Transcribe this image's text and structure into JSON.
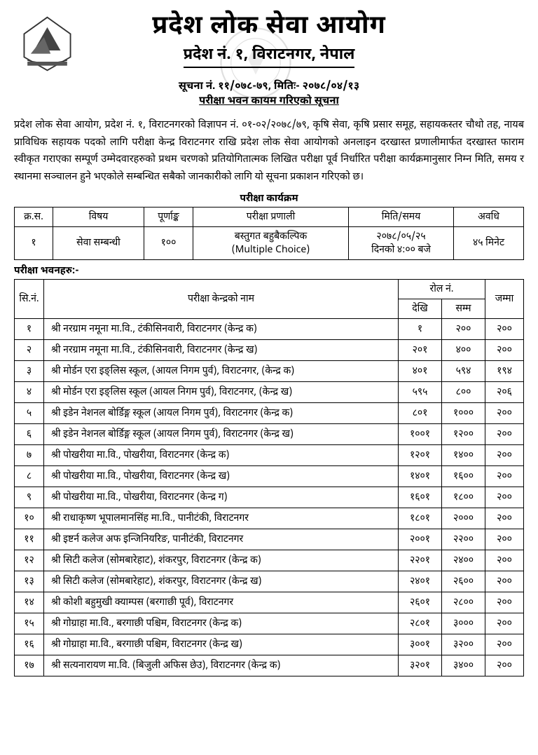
{
  "header": {
    "title": "प्रदेश लोक सेवा आयोग",
    "subtitle": "प्रदेश नं. १, विराटनगर, नेपाल"
  },
  "notice": {
    "number_line": "सूचना नं. ११/०७८-७९,  मितिः- २०७८/०४/१३",
    "title": "परीक्षा भवन कायम गरिएको सूचना",
    "body": "प्रदेश लोक सेवा आयोग, प्रदेश नं. १, विराटनगरको विज्ञापन नं. ०१-०२/२०७८/७९, कृषि सेवा, कृषि प्रसार समूह, सहायकस्तर चौथो तह, नायब प्राविधिक सहायक पदको लागि परीक्षा केन्द्र विराटनगर राखि प्रदेश लोक सेवा आयोगको अनलाइन दरखास्त प्रणालीमार्फत दरखास्त फाराम स्वीकृत गराएका सम्पूर्ण उम्मेदवारहरुको प्रथम चरणको प्रतियोगितात्मक लिखित परीक्षा पूर्व निर्धारित परीक्षा कार्यक्रमानुसार निम्न मिति, समय र स्थानमा सञ्चालन हुने भएकोले सम्बन्धित सबैको जानकारीको लागि यो सूचना प्रकाशन गरिएको छ।"
  },
  "schedule": {
    "caption": "परीक्षा कार्यक्रम",
    "headers": {
      "sn": "क्र.स.",
      "subject": "विषय",
      "marks": "पूर्णाङ्क",
      "method": "परीक्षा प्रणाली",
      "datetime": "मिति/समय",
      "duration": "अवधि"
    },
    "row": {
      "sn": "१",
      "subject": "सेवा सम्बन्धी",
      "marks": "१००",
      "method_line1": "बस्तुगत बहुबैकल्पिक",
      "method_line2": "(Multiple Choice)",
      "date": "२०७८/०५/२५",
      "time": "दिनको ४:०० बजे",
      "duration": "४५ मिनेट"
    }
  },
  "centers": {
    "section_label": "परीक्षा भवनहरु:-",
    "headers": {
      "sn": "सि.नं.",
      "name": "परीक्षा केन्द्रको नाम",
      "roll": "रोल नं.",
      "from": "देखि",
      "to": "सम्म",
      "total": "जम्मा"
    },
    "rows": [
      {
        "sn": "१",
        "name": "श्री नरग्राम नमूना मा.वि., टंकीसिनवारी, विराटनगर (केन्द्र क)",
        "from": "१",
        "to": "२००",
        "total": "२००"
      },
      {
        "sn": "२",
        "name": "श्री नरग्राम नमूना मा.वि., टंकीसिनवारी, विराटनगर (केन्द्र ख)",
        "from": "२०१",
        "to": "४००",
        "total": "२००"
      },
      {
        "sn": "३",
        "name": "श्री मोर्डन एरा इङ्लिस स्कूल, (आयल निगम पुर्व), विराटनगर, (केन्द्र क)",
        "from": "४०१",
        "to": "५९४",
        "total": "१९४"
      },
      {
        "sn": "४",
        "name": "श्री मोर्डन एरा इङ्लिस स्कूल (आयल निगम पुर्व), विराटनगर, (केन्द्र ख)",
        "from": "५९५",
        "to": "८००",
        "total": "२०६"
      },
      {
        "sn": "५",
        "name": "श्री इडेन नेशनल बोर्डिङ्ग स्कूल (आयल निगम पुर्व), विराटनगर (केन्द्र क)",
        "from": "८०१",
        "to": "१०००",
        "total": "२००"
      },
      {
        "sn": "६",
        "name": "श्री इडेन नेशनल बोर्डिङ्ग स्कूल (आयल निगम पुर्व), विराटनगर (केन्द्र ख)",
        "from": "१००१",
        "to": "१२००",
        "total": "२००"
      },
      {
        "sn": "७",
        "name": "श्री पोखरीया मा.वि., पोखरीया, विराटनगर (केन्द्र क)",
        "from": "१२०१",
        "to": "१४००",
        "total": "२००"
      },
      {
        "sn": "८",
        "name": "श्री पोखरीया मा.वि., पोखरीया, विराटनगर (केन्द्र ख)",
        "from": "१४०१",
        "to": "१६००",
        "total": "२००"
      },
      {
        "sn": "९",
        "name": "श्री पोखरीया मा.वि., पोखरीया, विराटनगर (केन्द्र ग)",
        "from": "१६०१",
        "to": "१८००",
        "total": "२००"
      },
      {
        "sn": "१०",
        "name": "श्री राधाकृष्ण भूपालमानसिंह मा.वि., पानीटंकी, विराटनगर",
        "from": "१८०१",
        "to": "२०००",
        "total": "२००"
      },
      {
        "sn": "११",
        "name": "श्री इष्टर्न कलेज अफ इन्जिनियरिङ, पानीटंकी, विराटनगर",
        "from": "२००१",
        "to": "२२००",
        "total": "२००"
      },
      {
        "sn": "१२",
        "name": "श्री सिटी कलेज (सोमबारेहाट), शंकरपुर, विराटनगर (केन्द्र क)",
        "from": "२२०१",
        "to": "२४००",
        "total": "२००"
      },
      {
        "sn": "१३",
        "name": "श्री सिटी कलेज (सोमबारेहाट), शंकरपुर, विराटनगर (केन्द्र ख)",
        "from": "२४०१",
        "to": "२६००",
        "total": "२००"
      },
      {
        "sn": "१४",
        "name": "श्री कोशी बहुमुखी क्याम्पस (बरगाछी पूर्व), विराटनगर",
        "from": "२६०१",
        "to": "२८००",
        "total": "२००"
      },
      {
        "sn": "१५",
        "name": "श्री गोग्राहा मा.वि., बरगाछी पश्चिम, विराटनगर (केन्द्र क)",
        "from": "२८०१",
        "to": "३०००",
        "total": "२००"
      },
      {
        "sn": "१६",
        "name": "श्री गोग्राहा मा.वि., बरगाछी पश्चिम, विराटनगर (केन्द्र ख)",
        "from": "३००१",
        "to": "३२००",
        "total": "२००"
      },
      {
        "sn": "१७",
        "name": "श्री सत्यनारायण मा.वि. (बिजुली अफिस छेउ), विराटनगर (केन्द्र क)",
        "from": "३२०१",
        "to": "३४००",
        "total": "२००"
      }
    ]
  },
  "colors": {
    "text": "#000000",
    "background": "#ffffff",
    "border": "#000000"
  }
}
